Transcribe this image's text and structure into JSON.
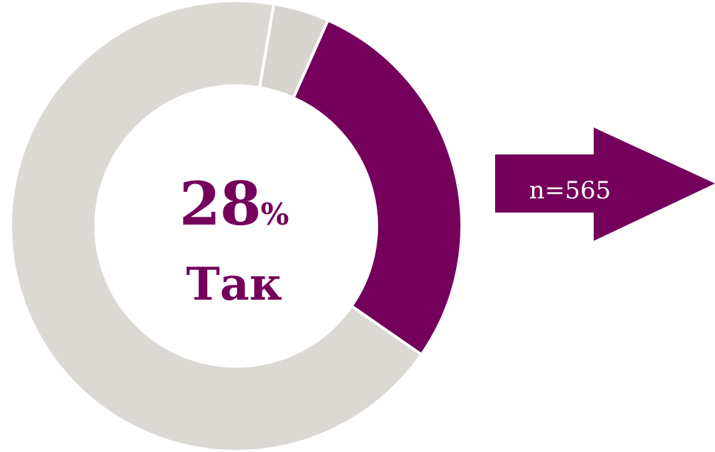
{
  "chart_data": {
    "type": "pie",
    "slices": [
      {
        "label": "Так",
        "value": 28,
        "color": "#74005c"
      },
      {
        "value": 68,
        "color": "#dcd8d3"
      },
      {
        "value": 4,
        "color": "#d8d4cf"
      }
    ],
    "center": {
      "value": "28",
      "unit": "%",
      "label": "Так"
    },
    "annotation": {
      "text": "n=565",
      "icon": "right-arrow-icon",
      "color": "#74005c"
    }
  }
}
